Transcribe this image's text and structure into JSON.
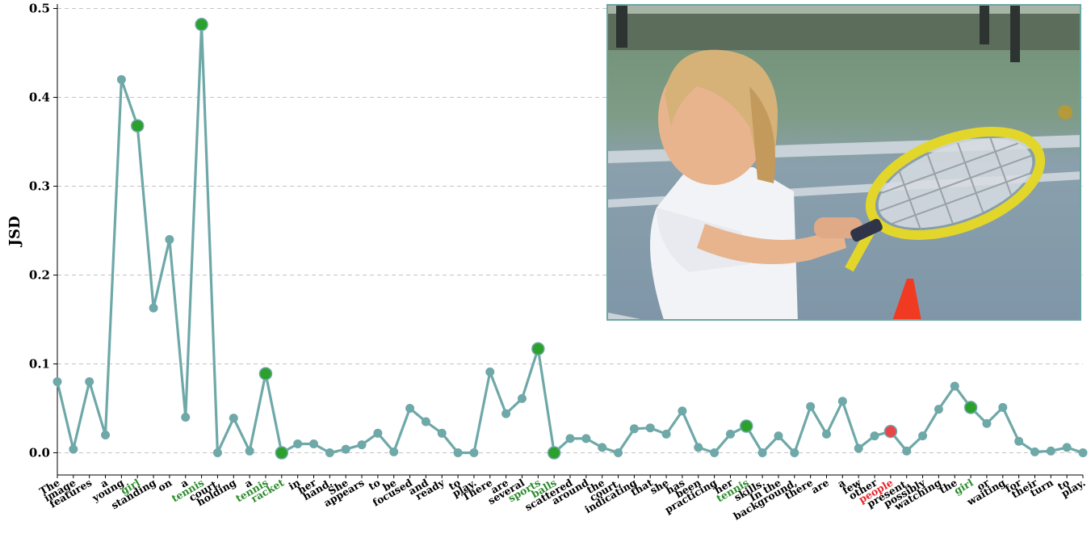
{
  "chart_data": {
    "type": "line",
    "ylabel": "JSD",
    "ylim": [
      -0.025,
      0.505
    ],
    "yticks": [
      "0.0",
      "0.1",
      "0.2",
      "0.3",
      "0.4",
      "0.5"
    ],
    "grid": "horizontal-dashed",
    "colors": {
      "line": "#6fa8a8",
      "normal": "#6fa8a8",
      "green": "#2ca02c",
      "red": "#e8454a",
      "green_text": "#2b8a2b",
      "red_text": "#e8262a"
    },
    "points": [
      {
        "token": "The",
        "value": 0.08,
        "mark": "normal"
      },
      {
        "token": "image",
        "value": 0.004,
        "mark": "normal"
      },
      {
        "token": "features",
        "value": 0.08,
        "mark": "normal"
      },
      {
        "token": "a",
        "value": 0.02,
        "mark": "normal"
      },
      {
        "token": "young",
        "value": 0.42,
        "mark": "normal"
      },
      {
        "token": "girl",
        "value": 0.368,
        "mark": "green"
      },
      {
        "token": "standing",
        "value": 0.163,
        "mark": "normal"
      },
      {
        "token": "on",
        "value": 0.24,
        "mark": "normal"
      },
      {
        "token": "a",
        "value": 0.04,
        "mark": "normal"
      },
      {
        "token": "tennis",
        "value": 0.482,
        "mark": "green"
      },
      {
        "token": "court,",
        "value": 0.0,
        "mark": "normal"
      },
      {
        "token": "holding",
        "value": 0.039,
        "mark": "normal"
      },
      {
        "token": "a",
        "value": 0.002,
        "mark": "normal"
      },
      {
        "token": "tennis",
        "value": 0.089,
        "mark": "green"
      },
      {
        "token": "racket",
        "value": 0.0,
        "mark": "green"
      },
      {
        "token": "in",
        "value": 0.01,
        "mark": "normal"
      },
      {
        "token": "her",
        "value": 0.01,
        "mark": "normal"
      },
      {
        "token": "hand.",
        "value": 0.0,
        "mark": "normal"
      },
      {
        "token": "She",
        "value": 0.004,
        "mark": "normal"
      },
      {
        "token": "appears",
        "value": 0.009,
        "mark": "normal"
      },
      {
        "token": "to",
        "value": 0.022,
        "mark": "normal"
      },
      {
        "token": "be",
        "value": 0.001,
        "mark": "normal"
      },
      {
        "token": "focused",
        "value": 0.05,
        "mark": "normal"
      },
      {
        "token": "and",
        "value": 0.035,
        "mark": "normal"
      },
      {
        "token": "ready",
        "value": 0.022,
        "mark": "normal"
      },
      {
        "token": "to",
        "value": 0.0,
        "mark": "normal"
      },
      {
        "token": "play.",
        "value": 0.0,
        "mark": "normal"
      },
      {
        "token": "There",
        "value": 0.091,
        "mark": "normal"
      },
      {
        "token": "are",
        "value": 0.044,
        "mark": "normal"
      },
      {
        "token": "several",
        "value": 0.061,
        "mark": "normal"
      },
      {
        "token": "sports",
        "value": 0.117,
        "mark": "green"
      },
      {
        "token": "balls",
        "value": 0.0,
        "mark": "green"
      },
      {
        "token": "scattered",
        "value": 0.016,
        "mark": "normal"
      },
      {
        "token": "around",
        "value": 0.016,
        "mark": "normal"
      },
      {
        "token": "the",
        "value": 0.006,
        "mark": "normal"
      },
      {
        "token": "court,",
        "value": 0.0,
        "mark": "normal"
      },
      {
        "token": "indicating",
        "value": 0.027,
        "mark": "normal"
      },
      {
        "token": "that",
        "value": 0.028,
        "mark": "normal"
      },
      {
        "token": "she",
        "value": 0.021,
        "mark": "normal"
      },
      {
        "token": "has",
        "value": 0.047,
        "mark": "normal"
      },
      {
        "token": "been",
        "value": 0.006,
        "mark": "normal"
      },
      {
        "token": "practicing",
        "value": 0.0,
        "mark": "normal"
      },
      {
        "token": "her",
        "value": 0.021,
        "mark": "normal"
      },
      {
        "token": "tennis",
        "value": 0.03,
        "mark": "green"
      },
      {
        "token": "skills.",
        "value": 0.0,
        "mark": "normal"
      },
      {
        "token": "In the",
        "value": 0.019,
        "mark": "normal"
      },
      {
        "token": "background,",
        "value": 0.0,
        "mark": "normal"
      },
      {
        "token": "there",
        "value": 0.052,
        "mark": "normal"
      },
      {
        "token": "are",
        "value": 0.021,
        "mark": "normal"
      },
      {
        "token": "a",
        "value": 0.058,
        "mark": "normal"
      },
      {
        "token": "few",
        "value": 0.005,
        "mark": "normal"
      },
      {
        "token": "other",
        "value": 0.019,
        "mark": "normal"
      },
      {
        "token": "people",
        "value": 0.024,
        "mark": "red"
      },
      {
        "token": "present,",
        "value": 0.002,
        "mark": "normal"
      },
      {
        "token": "possibly",
        "value": 0.019,
        "mark": "normal"
      },
      {
        "token": "watching",
        "value": 0.049,
        "mark": "normal"
      },
      {
        "token": "the",
        "value": 0.075,
        "mark": "normal"
      },
      {
        "token": "girl",
        "value": 0.051,
        "mark": "green"
      },
      {
        "token": "or",
        "value": 0.033,
        "mark": "normal"
      },
      {
        "token": "waiting",
        "value": 0.051,
        "mark": "normal"
      },
      {
        "token": "for",
        "value": 0.013,
        "mark": "normal"
      },
      {
        "token": "their",
        "value": 0.001,
        "mark": "normal"
      },
      {
        "token": "turn",
        "value": 0.002,
        "mark": "normal"
      },
      {
        "token": "to",
        "value": 0.006,
        "mark": "normal"
      },
      {
        "token": "play.",
        "value": 0.0,
        "mark": "normal"
      }
    ]
  }
}
